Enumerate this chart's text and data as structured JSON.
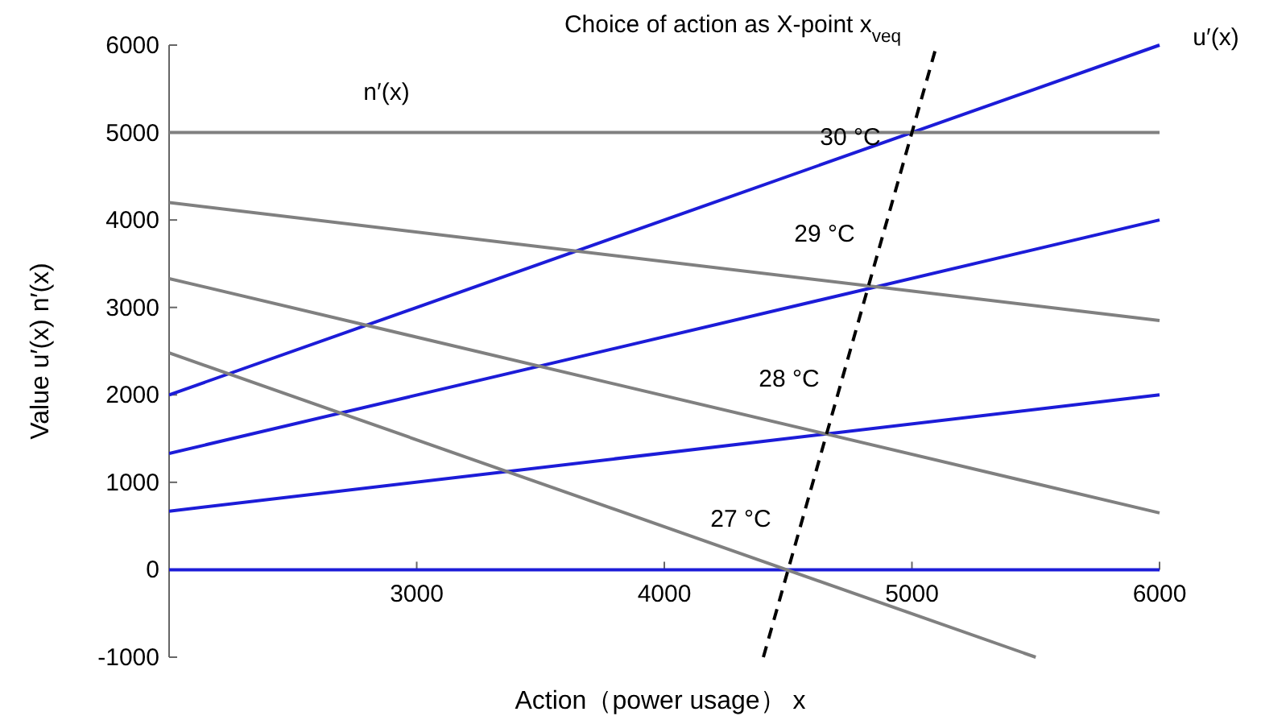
{
  "chart_data": {
    "type": "line",
    "title": "Choice of action as X-point  x$_{veq}$",
    "xlabel": "Action（power usage） x",
    "ylabel": "Value   u′(x)   n′(x)",
    "xlim": [
      2000,
      6000
    ],
    "ylim": [
      -1000,
      6000
    ],
    "xticks": [
      3000,
      4000,
      5000,
      6000
    ],
    "yticks": [
      -1000,
      0,
      1000,
      2000,
      3000,
      4000,
      5000,
      6000
    ],
    "grid": false,
    "marker": "none",
    "series": [
      {
        "color": "#1c1cd8",
        "x": [
          2000,
          6000
        ],
        "values": [
          2000,
          6000
        ]
      },
      {
        "color": "#1c1cd8",
        "x": [
          2000,
          6000
        ],
        "values": [
          1330,
          4000
        ]
      },
      {
        "color": "#1c1cd8",
        "x": [
          2000,
          6000
        ],
        "values": [
          670,
          2000
        ]
      },
      {
        "color": "#1c1cd8",
        "x": [
          2000,
          6000
        ],
        "values": [
          0,
          0
        ]
      },
      {
        "color": "#808080",
        "x": [
          2000,
          6000
        ],
        "values": [
          5000,
          5000
        ]
      },
      {
        "color": "#808080",
        "x": [
          2000,
          6000
        ],
        "values": [
          4200,
          2850
        ]
      },
      {
        "color": "#808080",
        "x": [
          2000,
          6000
        ],
        "values": [
          3330,
          650
        ]
      },
      {
        "color": "#808080",
        "x": [
          2000,
          5500
        ],
        "values": [
          2480,
          -1000
        ]
      },
      {
        "color": "#000000",
        "x": [
          4400,
          5100
        ],
        "values": [
          -1000,
          6000
        ],
        "line_style": "dashed"
      }
    ],
    "annotations": [
      "30 °C",
      "29 °C",
      "28 °C",
      "27 °C",
      "n′(x)",
      "u′(x)"
    ]
  }
}
